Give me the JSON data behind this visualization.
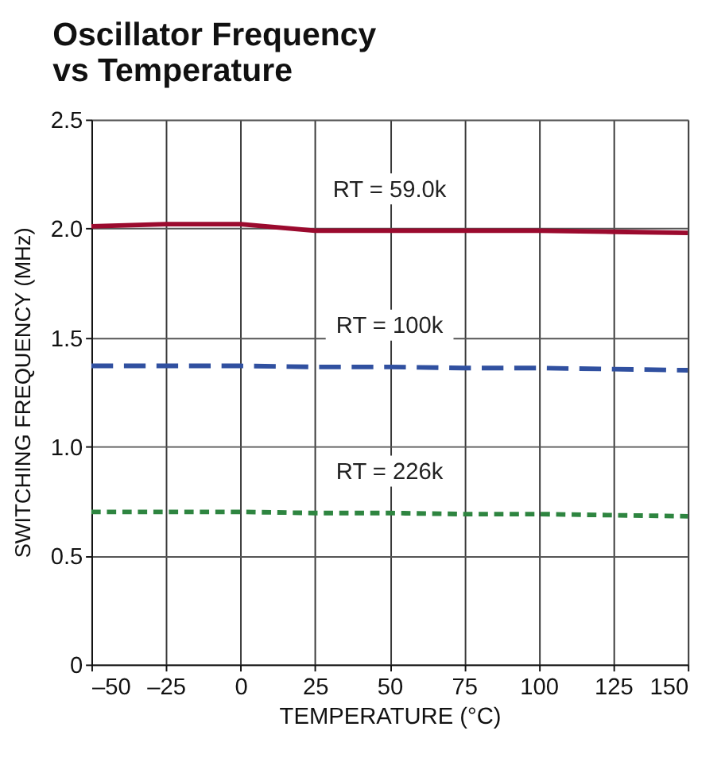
{
  "chart_data": {
    "type": "line",
    "title": "Oscillator Frequency\nvs Temperature",
    "xlabel": "TEMPERATURE (°C)",
    "ylabel": "SWITCHING FREQUENCY (MHz)",
    "x": [
      -50,
      -25,
      0,
      25,
      50,
      75,
      100,
      125,
      150
    ],
    "series": [
      {
        "name": "RT = 59.0k",
        "color": "#9b0a2e",
        "line_style": "solid",
        "values": [
          2.01,
          2.02,
          2.02,
          1.99,
          1.99,
          1.99,
          1.99,
          1.985,
          1.98
        ]
      },
      {
        "name": "RT = 100k",
        "color": "#3050a0",
        "line_style": "dashed",
        "values": [
          1.37,
          1.37,
          1.37,
          1.365,
          1.365,
          1.36,
          1.36,
          1.355,
          1.35
        ]
      },
      {
        "name": "RT = 226k",
        "color": "#2e8540",
        "line_style": "dotted",
        "values": [
          0.7,
          0.7,
          0.7,
          0.695,
          0.695,
          0.69,
          0.69,
          0.685,
          0.68
        ]
      }
    ],
    "xlim": [
      -50,
      150
    ],
    "xticks": [
      {
        "value": -50,
        "label": "–50"
      },
      {
        "value": -25,
        "label": "–25"
      },
      0,
      25,
      50,
      75,
      100,
      125,
      150
    ],
    "ylim": [
      0,
      2.5
    ],
    "yticks": [
      0,
      0.5,
      {
        "value": 1,
        "label": "1.0"
      },
      1.5,
      {
        "value": 2,
        "label": "2.0"
      },
      2.5
    ],
    "grid": true
  }
}
